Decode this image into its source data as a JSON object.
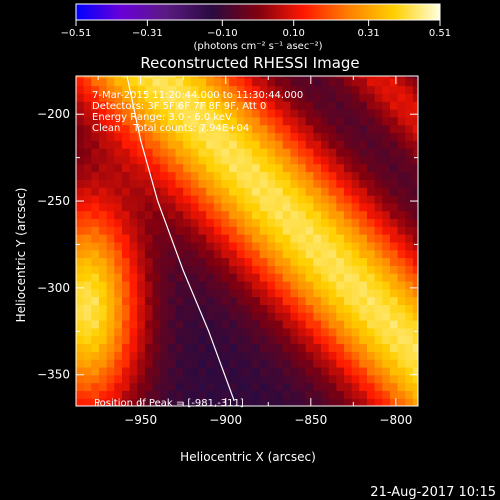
{
  "chart_data": {
    "type": "heatmap",
    "title": "Reconstructed RHESSI Image",
    "xlabel": "Heliocentric X (arcsec)",
    "ylabel": "Heliocentric Y (arcsec)",
    "xlim": [
      -988,
      -787
    ],
    "ylim": [
      -368,
      -178
    ],
    "x_ticks": [
      -950,
      -900,
      -850,
      -800
    ],
    "y_ticks": [
      -200,
      -250,
      -300,
      -350
    ],
    "x_tick_labels": [
      "−950",
      "−900",
      "−850",
      "−800"
    ],
    "y_tick_labels": [
      "−200",
      "−250",
      "−300",
      "−350"
    ],
    "colorbar": {
      "min": -0.51,
      "max": 0.51,
      "ticks": [
        -0.51,
        -0.31,
        -0.1,
        0.1,
        0.31,
        0.51
      ],
      "tick_labels": [
        "−0.51",
        "−0.31",
        "−0.10",
        "0.10",
        "0.31",
        "0.51"
      ],
      "unit_label": "(photons cm⁻² s⁻¹ asec⁻²)",
      "colors": [
        "#0000ff",
        "#6a00d8",
        "#5a1a80",
        "#2a0a40",
        "#800010",
        "#ff1800",
        "#ff8000",
        "#ffd000",
        "#ffffe0"
      ]
    },
    "annotations": [
      "7-Mar-2015 11:20:44.000 to 11:30:44.000",
      "Detectors: 3F 5F 6F 7F 8F 9F, Att 0",
      "Energy Range: 3.0 - 6.0 keV",
      "Clean    Total counts: 7.94E+04"
    ],
    "peak_label": "Position of Peak = [-981,-311]",
    "peak": [
      -981,
      -311
    ],
    "limb_curve": [
      [
        -958,
        -178
      ],
      [
        -950,
        -215
      ],
      [
        -940,
        -250
      ],
      [
        -925,
        -290
      ],
      [
        -910,
        -325
      ],
      [
        -895,
        -365
      ]
    ]
  },
  "footer": {
    "date": "21-Aug-2017 10:15"
  }
}
